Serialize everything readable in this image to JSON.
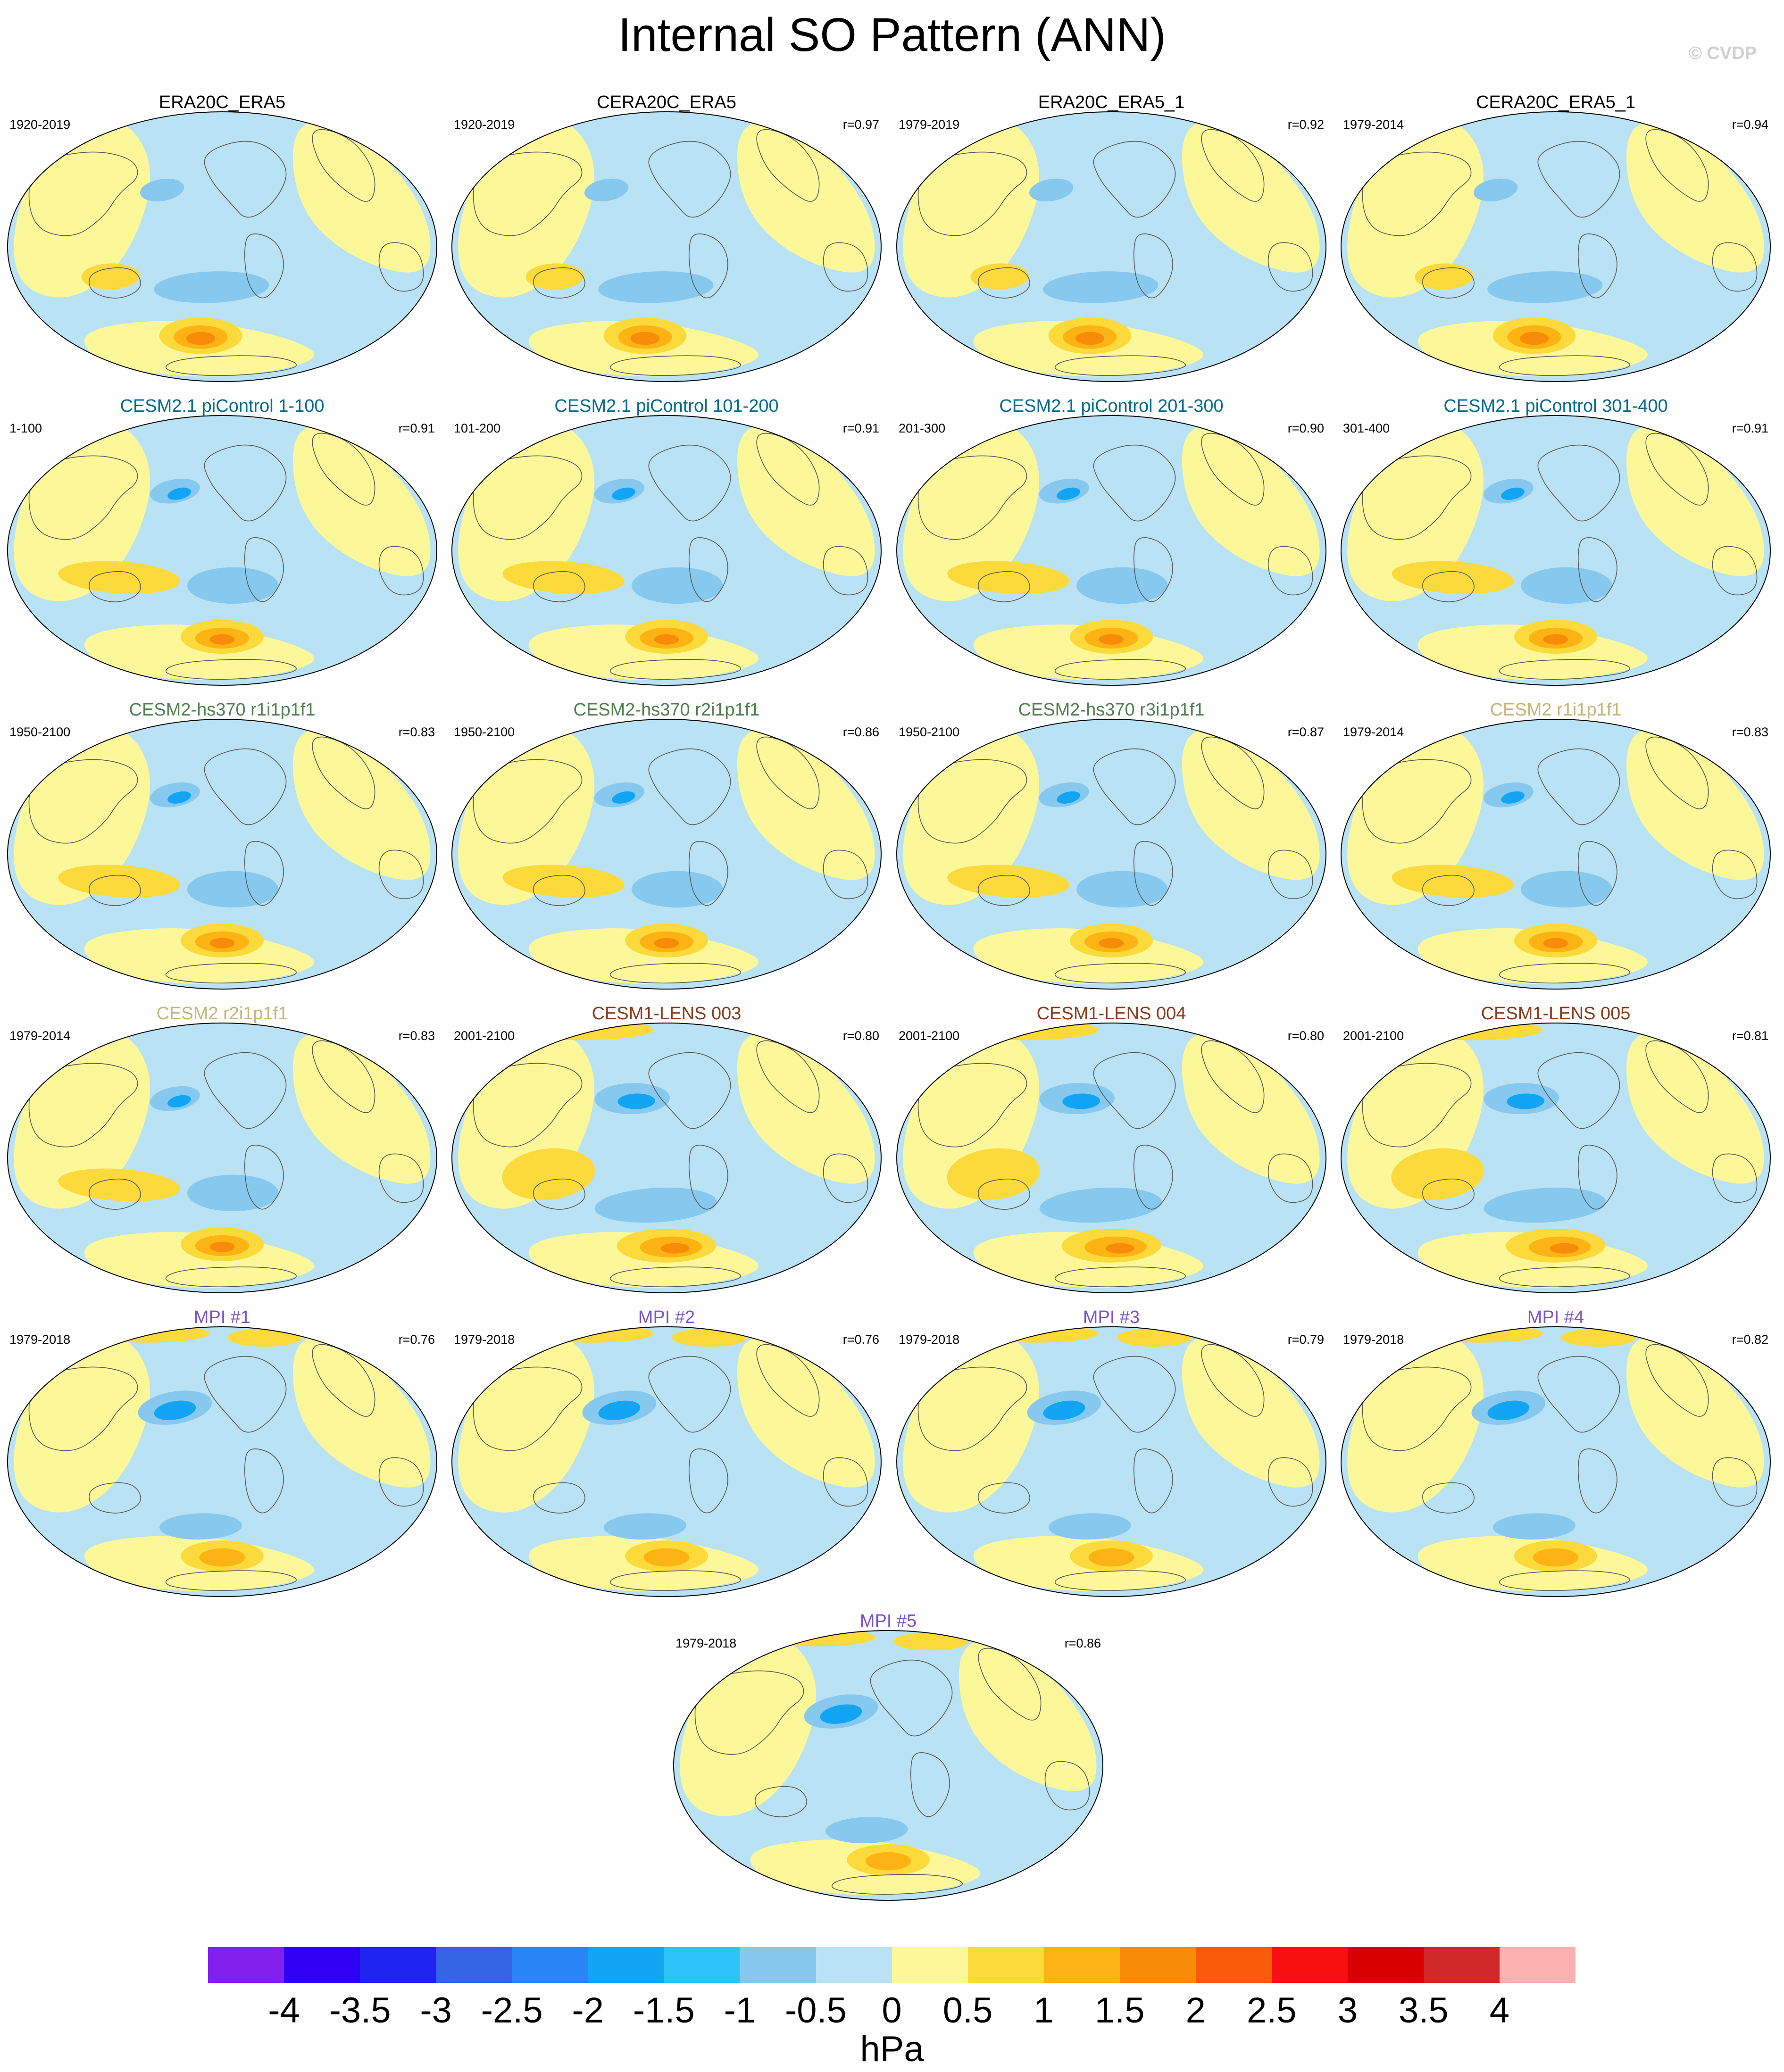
{
  "title": "Internal SO Pattern (ANN)",
  "watermark": "© CVDP",
  "colors": {
    "obs": "#000000",
    "cesm21": "#006b8f",
    "hs370": "#4f7f4f",
    "cesm2": "#c8b476",
    "lens": "#8b3a1a",
    "mpi": "#7b52c7",
    "land": "#333333",
    "ocean": "#b8e0f2"
  },
  "panels": [
    {
      "title": "ERA20C_ERA5",
      "period": "1920-2019",
      "r": "",
      "group": "obs",
      "pattern": 0
    },
    {
      "title": "CERA20C_ERA5",
      "period": "1920-2019",
      "r": "r=0.97",
      "group": "obs",
      "pattern": 0
    },
    {
      "title": "ERA20C_ERA5_1",
      "period": "1979-2019",
      "r": "r=0.92",
      "group": "obs",
      "pattern": 0
    },
    {
      "title": "CERA20C_ERA5_1",
      "period": "1979-2014",
      "r": "r=0.94",
      "group": "obs",
      "pattern": 0
    },
    {
      "title": "CESM2.1 piControl 1-100",
      "period": "1-100",
      "r": "r=0.91",
      "group": "cesm21",
      "pattern": 1
    },
    {
      "title": "CESM2.1 piControl 101-200",
      "period": "101-200",
      "r": "r=0.91",
      "group": "cesm21",
      "pattern": 1
    },
    {
      "title": "CESM2.1 piControl 201-300",
      "period": "201-300",
      "r": "r=0.90",
      "group": "cesm21",
      "pattern": 1
    },
    {
      "title": "CESM2.1 piControl 301-400",
      "period": "301-400",
      "r": "r=0.91",
      "group": "cesm21",
      "pattern": 1
    },
    {
      "title": "CESM2-hs370 r1i1p1f1",
      "period": "1950-2100",
      "r": "r=0.83",
      "group": "hs370",
      "pattern": 1
    },
    {
      "title": "CESM2-hs370 r2i1p1f1",
      "period": "1950-2100",
      "r": "r=0.86",
      "group": "hs370",
      "pattern": 1
    },
    {
      "title": "CESM2-hs370 r3i1p1f1",
      "period": "1950-2100",
      "r": "r=0.87",
      "group": "hs370",
      "pattern": 1
    },
    {
      "title": "CESM2 r1i1p1f1",
      "period": "1979-2014",
      "r": "r=0.83",
      "group": "cesm2",
      "pattern": 1
    },
    {
      "title": "CESM2 r2i1p1f1",
      "period": "1979-2014",
      "r": "r=0.83",
      "group": "cesm2",
      "pattern": 1
    },
    {
      "title": "CESM1-LENS 003",
      "period": "2001-2100",
      "r": "r=0.80",
      "group": "lens",
      "pattern": 2
    },
    {
      "title": "CESM1-LENS 004",
      "period": "2001-2100",
      "r": "r=0.80",
      "group": "lens",
      "pattern": 2
    },
    {
      "title": "CESM1-LENS 005",
      "period": "2001-2100",
      "r": "r=0.81",
      "group": "lens",
      "pattern": 2
    },
    {
      "title": "MPI #1",
      "period": "1979-2018",
      "r": "r=0.76",
      "group": "mpi",
      "pattern": 3
    },
    {
      "title": "MPI #2",
      "period": "1979-2018",
      "r": "r=0.76",
      "group": "mpi",
      "pattern": 3
    },
    {
      "title": "MPI #3",
      "period": "1979-2018",
      "r": "r=0.79",
      "group": "mpi",
      "pattern": 3
    },
    {
      "title": "MPI #4",
      "period": "1979-2018",
      "r": "r=0.82",
      "group": "mpi",
      "pattern": 3
    },
    {
      "title": "MPI #5",
      "period": "1979-2018",
      "r": "r=0.86",
      "group": "mpi",
      "pattern": 3
    }
  ],
  "colorbar": {
    "colors": [
      "#8420ee",
      "#2f00f4",
      "#1f24f0",
      "#3465e4",
      "#2a86f6",
      "#12a5f4",
      "#2cc4f8",
      "#87c8ee",
      "#b9e2f4",
      "#fcf89a",
      "#fcda3c",
      "#fcb313",
      "#f88c08",
      "#f85c08",
      "#f81010",
      "#d80000",
      "#d02828",
      "#fcb0b0"
    ],
    "ticks": [
      "-4",
      "-3.5",
      "-3",
      "-2.5",
      "-2",
      "-1.5",
      "-1",
      "-0.5",
      "0",
      "0.5",
      "1",
      "1.5",
      "2",
      "2.5",
      "3",
      "3.5",
      "4"
    ],
    "units": "hPa"
  }
}
